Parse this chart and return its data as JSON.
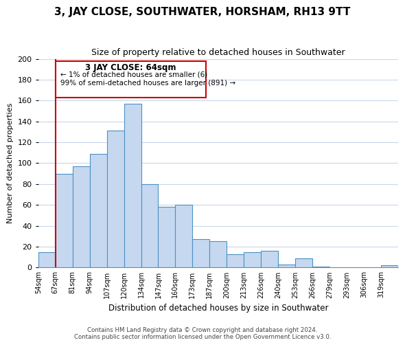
{
  "title": "3, JAY CLOSE, SOUTHWATER, HORSHAM, RH13 9TT",
  "subtitle": "Size of property relative to detached houses in Southwater",
  "xlabel": "Distribution of detached houses by size in Southwater",
  "ylabel": "Number of detached properties",
  "bin_labels": [
    "54sqm",
    "67sqm",
    "81sqm",
    "94sqm",
    "107sqm",
    "120sqm",
    "134sqm",
    "147sqm",
    "160sqm",
    "173sqm",
    "187sqm",
    "200sqm",
    "213sqm",
    "226sqm",
    "240sqm",
    "253sqm",
    "266sqm",
    "279sqm",
    "293sqm",
    "306sqm",
    "319sqm"
  ],
  "bar_values": [
    15,
    90,
    97,
    109,
    131,
    157,
    80,
    58,
    60,
    27,
    25,
    13,
    15,
    16,
    3,
    9,
    1,
    0,
    0,
    0,
    2
  ],
  "bar_color": "#c5d8f0",
  "bar_edge_color": "#4a90c4",
  "annotation_title": "3 JAY CLOSE: 64sqm",
  "annotation_line1": "← 1% of detached houses are smaller (6)",
  "annotation_line2": "99% of semi-detached houses are larger (891) →",
  "annotation_box_color": "#ffffff",
  "annotation_border_color": "#cc0000",
  "vline_color": "#cc0000",
  "footer_line1": "Contains HM Land Registry data © Crown copyright and database right 2024.",
  "footer_line2": "Contains public sector information licensed under the Open Government Licence v3.0.",
  "ylim": [
    0,
    200
  ],
  "yticks": [
    0,
    20,
    40,
    60,
    80,
    100,
    120,
    140,
    160,
    180,
    200
  ],
  "background_color": "#ffffff",
  "grid_color": "#c8d8ec"
}
